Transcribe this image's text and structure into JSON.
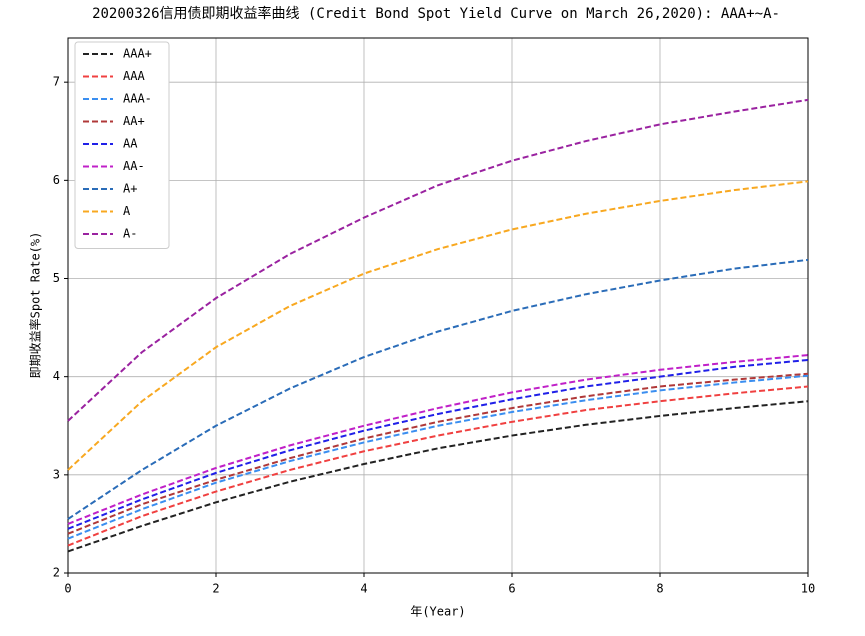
{
  "chart_data": {
    "type": "line",
    "title": "20200326信用债即期收益率曲线 (Credit Bond Spot Yield Curve on March 26,2020): AAA+~A-",
    "x_label": "年(Year)",
    "y_label": "即期收益率Spot Rate(%)",
    "x": [
      0,
      1,
      2,
      3,
      4,
      5,
      6,
      7,
      8,
      9,
      10
    ],
    "series": [
      {
        "name": "AAA+",
        "color": "#222222",
        "values": [
          2.22,
          2.48,
          2.72,
          2.93,
          3.11,
          3.27,
          3.4,
          3.51,
          3.6,
          3.68,
          3.75
        ]
      },
      {
        "name": "AAA",
        "color": "#f04040",
        "values": [
          2.28,
          2.58,
          2.83,
          3.05,
          3.24,
          3.4,
          3.54,
          3.66,
          3.75,
          3.83,
          3.9
        ]
      },
      {
        "name": "AAA-",
        "color": "#3a8ef0",
        "values": [
          2.35,
          2.65,
          2.92,
          3.14,
          3.33,
          3.5,
          3.64,
          3.76,
          3.86,
          3.94,
          4.01
        ]
      },
      {
        "name": "AA+",
        "color": "#b03838",
        "values": [
          2.4,
          2.7,
          2.95,
          3.17,
          3.37,
          3.54,
          3.68,
          3.8,
          3.9,
          3.97,
          4.03
        ]
      },
      {
        "name": "AA",
        "color": "#2020e8",
        "values": [
          2.45,
          2.75,
          3.02,
          3.25,
          3.45,
          3.62,
          3.77,
          3.9,
          4.0,
          4.1,
          4.17
        ]
      },
      {
        "name": "AA-",
        "color": "#c020c8",
        "values": [
          2.5,
          2.8,
          3.07,
          3.3,
          3.5,
          3.68,
          3.84,
          3.97,
          4.07,
          4.15,
          4.22
        ]
      },
      {
        "name": "A+",
        "color": "#2a6cb8",
        "values": [
          2.55,
          3.05,
          3.5,
          3.88,
          4.2,
          4.46,
          4.67,
          4.84,
          4.98,
          5.1,
          5.19
        ]
      },
      {
        "name": "A",
        "color": "#f8a820",
        "values": [
          3.05,
          3.75,
          4.3,
          4.72,
          5.05,
          5.3,
          5.5,
          5.66,
          5.79,
          5.9,
          5.99
        ]
      },
      {
        "name": "A-",
        "color": "#9a22a0",
        "values": [
          3.55,
          4.25,
          4.8,
          5.25,
          5.62,
          5.95,
          6.2,
          6.4,
          6.57,
          6.7,
          6.82
        ]
      }
    ],
    "xlim": [
      0,
      10
    ],
    "xticks": [
      0,
      2,
      4,
      6,
      8,
      10
    ],
    "ylim": [
      2,
      7.45
    ],
    "yticks": [
      2,
      3,
      4,
      5,
      6,
      7
    ],
    "grid": true,
    "legend": "upper-left"
  }
}
